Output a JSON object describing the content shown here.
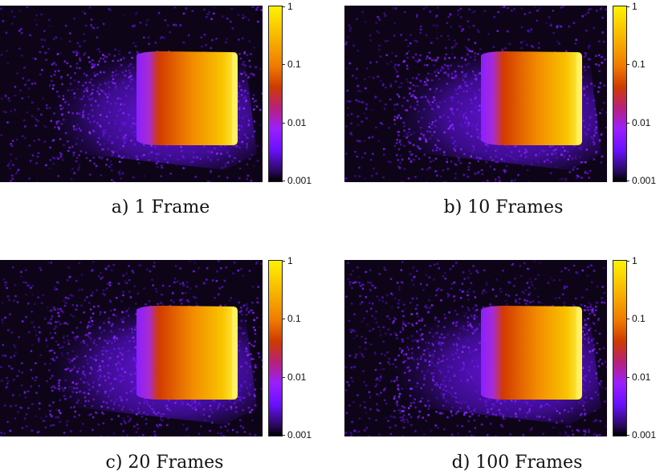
{
  "colorbar": {
    "scale": "log",
    "ticks": [
      "1",
      "0.1",
      "0.01",
      "0.001"
    ],
    "colormap": [
      "#000000",
      "#2a0860",
      "#6a10ff",
      "#9a1fff",
      "#cf3a00",
      "#f07a00",
      "#f7b500",
      "#fff200"
    ]
  },
  "panels": [
    {
      "caption": "a) 1 Frame",
      "frames": 1
    },
    {
      "caption": "b) 10 Frames",
      "frames": 10
    },
    {
      "caption": "c) 20 Frames",
      "frames": 20
    },
    {
      "caption": "d) 100 Frames",
      "frames": 100
    }
  ]
}
